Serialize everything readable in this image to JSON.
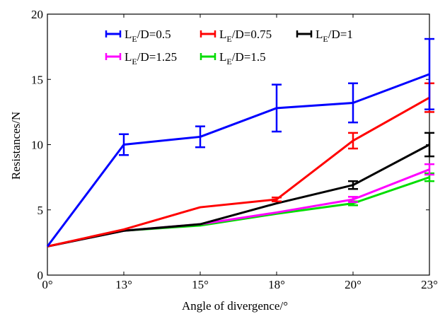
{
  "chart_data": {
    "type": "line",
    "title": "",
    "xlabel": "Angle of divergence/°",
    "ylabel": "Resistances/N",
    "categories": [
      "0°",
      "13°",
      "15°",
      "18°",
      "20°",
      "23°"
    ],
    "ylim": [
      0,
      20
    ],
    "yticks": [
      0,
      5,
      10,
      15,
      20
    ],
    "grid": false,
    "legend_position": "top",
    "series": [
      {
        "name": "LE/D=0.5",
        "label_main": "L",
        "label_sub": "E",
        "label_rest": "/D=0.5",
        "color": "#0000ff",
        "values": [
          2.2,
          10.0,
          10.6,
          12.8,
          13.2,
          15.4
        ],
        "errors": [
          0.0,
          0.8,
          0.8,
          1.8,
          1.5,
          2.7
        ]
      },
      {
        "name": "LE/D=0.75",
        "label_main": "L",
        "label_sub": "E",
        "label_rest": "/D=0.75",
        "color": "#ff0000",
        "values": [
          2.2,
          3.5,
          5.2,
          5.8,
          10.3,
          13.6
        ],
        "errors": [
          0.0,
          0.0,
          0.0,
          0.15,
          0.6,
          1.1
        ]
      },
      {
        "name": "LE/D=1",
        "label_main": "L",
        "label_sub": "E",
        "label_rest": "/D=1",
        "color": "#000000",
        "values": [
          2.2,
          3.4,
          3.9,
          5.5,
          6.9,
          10.0
        ],
        "errors": [
          0.0,
          0.0,
          0.0,
          0.0,
          0.3,
          0.9
        ]
      },
      {
        "name": "LE/D=1.25",
        "label_main": "L",
        "label_sub": "E",
        "label_rest": "/D=1.25",
        "color": "#ff00ff",
        "values": [
          2.2,
          3.4,
          3.9,
          4.8,
          5.8,
          8.1
        ],
        "errors": [
          0.0,
          0.0,
          0.0,
          0.0,
          0.2,
          0.4
        ]
      },
      {
        "name": "LE/D=1.5",
        "label_main": "L",
        "label_sub": "E",
        "label_rest": "/D=1.5",
        "color": "#00dd00",
        "values": [
          2.2,
          3.4,
          3.8,
          4.7,
          5.5,
          7.5
        ],
        "errors": [
          0.0,
          0.0,
          0.0,
          0.0,
          0.15,
          0.3
        ]
      }
    ]
  }
}
